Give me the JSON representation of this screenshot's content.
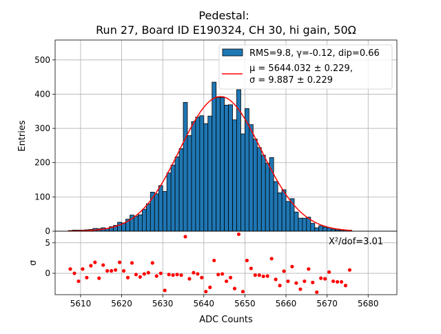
{
  "chart_data": {
    "type": "bar",
    "title_line1": "Pedestal:",
    "title_line2": "Run 27, Board ID E190324, CH 30, hi gain, 50Ω",
    "xlabel": "ADC Counts",
    "ylabel": "Entries",
    "residual_ylabel": "σ",
    "xlim": [
      5603.8,
      5687
    ],
    "ylim": [
      0,
      558
    ],
    "residual_ylim": [
      -3.5,
      6.9
    ],
    "grid": true,
    "legend_placement": "top-right",
    "x_ticks": [
      5610,
      5620,
      5630,
      5640,
      5650,
      5660,
      5670,
      5680
    ],
    "y_ticks": [
      0,
      100,
      200,
      300,
      400,
      500
    ],
    "residual_y_ticks": [
      0,
      5
    ],
    "bin_start": 5607,
    "bin_width": 1,
    "values": [
      2,
      3,
      3,
      3,
      4,
      5,
      8,
      7,
      10,
      8,
      13,
      17,
      26,
      24,
      35,
      47,
      44,
      48,
      64,
      80,
      114,
      109,
      133,
      116,
      170,
      193,
      217,
      241,
      376,
      279,
      320,
      333,
      337,
      314,
      336,
      435,
      390,
      390,
      368,
      369,
      325,
      413,
      284,
      358,
      311,
      269,
      244,
      222,
      198,
      215,
      145,
      112,
      121,
      87,
      95,
      56,
      38,
      38,
      41,
      23,
      10,
      16,
      12,
      10,
      6,
      4,
      3,
      3,
      3
    ],
    "residuals": [
      0.7,
      0.0,
      -1.3,
      0.7,
      -0.7,
      1.25,
      1.8,
      -0.8,
      1.35,
      0.4,
      0.4,
      0.55,
      1.8,
      0.4,
      -0.7,
      1.7,
      -0.2,
      -0.6,
      -0.1,
      0.1,
      1.7,
      -0.45,
      0.0,
      -2.8,
      -0.2,
      -0.3,
      -0.2,
      -0.3,
      6.0,
      -0.9,
      0.1,
      -0.1,
      -0.7,
      -3.0,
      -2.3,
      2.1,
      -0.2,
      -0.1,
      -1.3,
      -0.7,
      -2.5,
      6.4,
      -3.0,
      2.1,
      0.8,
      -0.3,
      -0.3,
      -0.5,
      -0.45,
      2.4,
      -1.0,
      -2.0,
      0.35,
      -1.3,
      1.1,
      -1.6,
      -2.6,
      -1.3,
      0.7,
      -1.5,
      -3.1,
      -0.8,
      -0.9,
      0.2,
      -1.3,
      -1.4,
      -1.4,
      -2.0,
      0.55
    ],
    "fit": {
      "mu": 5644.032,
      "sigma": 9.887,
      "amplitude": 393,
      "range": [
        5607,
        5676
      ]
    },
    "legend": {
      "hist_label": "RMS=9.8, γ=-0.12, dip=0.66",
      "fit_label_line1": "μ = 5644.032 ± 0.229,",
      "fit_label_line2": "σ = 9.887 ± 0.229"
    },
    "chi2_annotation": "X²/dof=3.01",
    "colors": {
      "bar": "#1f77b4",
      "fit": "#ff0000",
      "residual": "#ff0000",
      "grid": "#b0b0b0"
    }
  }
}
